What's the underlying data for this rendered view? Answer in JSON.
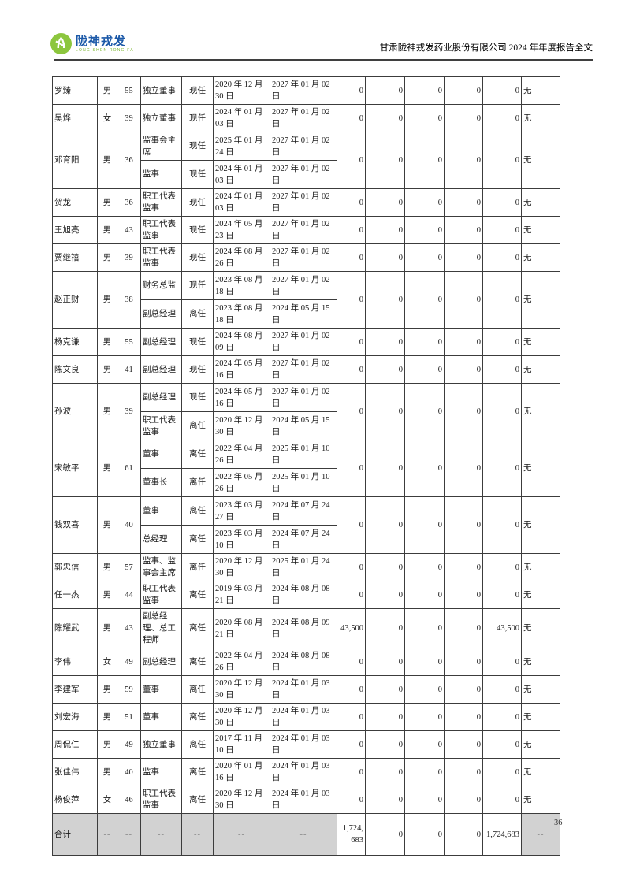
{
  "header": {
    "logo": {
      "brand_cn": "陇神戎发",
      "brand_en": "LONG SHEN RONG FA",
      "brand_blue": "#1c59a8",
      "brand_green": "#8cc63e"
    },
    "doc_title": "甘肃陇神戎发药业股份有限公司 2024 年年度报告全文"
  },
  "table": {
    "rows": [
      {
        "name": "罗臻",
        "gender": "男",
        "age": "55",
        "stints": [
          {
            "position": "独立董事",
            "status": "现任",
            "start": "2020 年 12 月 30 日",
            "end": "2027 年 01 月 02 日"
          }
        ],
        "values": [
          "0",
          "0",
          "0",
          "0",
          "0"
        ],
        "remark": "无"
      },
      {
        "name": "吴烨",
        "gender": "女",
        "age": "39",
        "stints": [
          {
            "position": "独立董事",
            "status": "现任",
            "start": "2024 年 01 月 03 日",
            "end": "2027 年 01 月 02 日"
          }
        ],
        "values": [
          "0",
          "0",
          "0",
          "0",
          "0"
        ],
        "remark": "无"
      },
      {
        "name": "邓育阳",
        "gender": "男",
        "age": "36",
        "stints": [
          {
            "position": "监事会主席",
            "status": "现任",
            "start": "2025 年 01 月 24 日",
            "end": "2027 年 01 月 02 日"
          },
          {
            "position": "监事",
            "status": "现任",
            "start": "2024 年 01 月 03 日",
            "end": "2027 年 01 月 02 日"
          }
        ],
        "values": [
          "0",
          "0",
          "0",
          "0",
          "0"
        ],
        "remark": "无"
      },
      {
        "name": "贺龙",
        "gender": "男",
        "age": "36",
        "stints": [
          {
            "position": "职工代表监事",
            "status": "现任",
            "start": "2024 年 01 月 03 日",
            "end": "2027 年 01 月 02 日"
          }
        ],
        "values": [
          "0",
          "0",
          "0",
          "0",
          "0"
        ],
        "remark": "无"
      },
      {
        "name": "王旭亮",
        "gender": "男",
        "age": "43",
        "stints": [
          {
            "position": "职工代表监事",
            "status": "现任",
            "start": "2024 年 05 月 23 日",
            "end": "2027 年 01 月 02 日"
          }
        ],
        "values": [
          "0",
          "0",
          "0",
          "0",
          "0"
        ],
        "remark": "无"
      },
      {
        "name": "贾继禧",
        "gender": "男",
        "age": "39",
        "stints": [
          {
            "position": "职工代表监事",
            "status": "现任",
            "start": "2024 年 08 月 26 日",
            "end": "2027 年 01 月 02 日"
          }
        ],
        "values": [
          "0",
          "0",
          "0",
          "0",
          "0"
        ],
        "remark": "无"
      },
      {
        "name": "赵正财",
        "gender": "男",
        "age": "38",
        "stints": [
          {
            "position": "财务总监",
            "status": "现任",
            "start": "2023 年 08 月 18 日",
            "end": "2027 年 01 月 02 日"
          },
          {
            "position": "副总经理",
            "status": "离任",
            "start": "2023 年 08 月 18 日",
            "end": "2024 年 05 月 15 日"
          }
        ],
        "values": [
          "0",
          "0",
          "0",
          "0",
          "0"
        ],
        "remark": "无"
      },
      {
        "name": "杨克谦",
        "gender": "男",
        "age": "55",
        "stints": [
          {
            "position": "副总经理",
            "status": "现任",
            "start": "2024 年 08 月 09 日",
            "end": "2027 年 01 月 02 日"
          }
        ],
        "values": [
          "0",
          "0",
          "0",
          "0",
          "0"
        ],
        "remark": "无"
      },
      {
        "name": "陈文良",
        "gender": "男",
        "age": "41",
        "stints": [
          {
            "position": "副总经理",
            "status": "现任",
            "start": "2024 年 05 月 16 日",
            "end": "2027 年 01 月 02 日"
          }
        ],
        "values": [
          "0",
          "0",
          "0",
          "0",
          "0"
        ],
        "remark": "无"
      },
      {
        "name": "孙波",
        "gender": "男",
        "age": "39",
        "stints": [
          {
            "position": "副总经理",
            "status": "现任",
            "start": "2024 年 05 月 16 日",
            "end": "2027 年 01 月 02 日"
          },
          {
            "position": "职工代表监事",
            "status": "离任",
            "start": "2020 年 12 月 30 日",
            "end": "2024 年 05 月 15 日"
          }
        ],
        "values": [
          "0",
          "0",
          "0",
          "0",
          "0"
        ],
        "remark": "无"
      },
      {
        "name": "宋敏平",
        "gender": "男",
        "age": "61",
        "stints": [
          {
            "position": "董事",
            "status": "离任",
            "start": "2022 年 04 月 26 日",
            "end": "2025 年 01 月 10 日"
          },
          {
            "position": "董事长",
            "status": "离任",
            "start": "2022 年 05 月 26 日",
            "end": "2025 年 01 月 10 日"
          }
        ],
        "values": [
          "0",
          "0",
          "0",
          "0",
          "0"
        ],
        "remark": "无"
      },
      {
        "name": "钱双喜",
        "gender": "男",
        "age": "40",
        "stints": [
          {
            "position": "董事",
            "status": "离任",
            "start": "2023 年 03 月 27 日",
            "end": "2024 年 07 月 24 日"
          },
          {
            "position": "总经理",
            "status": "离任",
            "start": "2023 年 03 月 10 日",
            "end": "2024 年 07 月 24 日"
          }
        ],
        "values": [
          "0",
          "0",
          "0",
          "0",
          "0"
        ],
        "remark": "无"
      },
      {
        "name": "郭忠信",
        "gender": "男",
        "age": "57",
        "stints": [
          {
            "position": "监事、监事会主席",
            "status": "离任",
            "start": "2020 年 12 月 30 日",
            "end": "2025 年 01 月 24 日"
          }
        ],
        "values": [
          "0",
          "0",
          "0",
          "0",
          "0"
        ],
        "remark": "无"
      },
      {
        "name": "任一杰",
        "gender": "男",
        "age": "44",
        "stints": [
          {
            "position": "职工代表监事",
            "status": "离任",
            "start": "2019 年 03 月 21 日",
            "end": "2024 年 08 月 08 日"
          }
        ],
        "values": [
          "0",
          "0",
          "0",
          "0",
          "0"
        ],
        "remark": "无"
      },
      {
        "name": "陈耀武",
        "gender": "男",
        "age": "43",
        "stints": [
          {
            "position": "副总经理、总工程师",
            "status": "离任",
            "start": "2020 年 08 月 21 日",
            "end": "2024 年 08 月 09 日"
          }
        ],
        "values": [
          "43,500",
          "0",
          "0",
          "0",
          "43,500"
        ],
        "remark": "无"
      },
      {
        "name": "李伟",
        "gender": "女",
        "age": "49",
        "stints": [
          {
            "position": "副总经理",
            "status": "离任",
            "start": "2022 年 04 月 26 日",
            "end": "2024 年 08 月 08 日"
          }
        ],
        "values": [
          "0",
          "0",
          "0",
          "0",
          "0"
        ],
        "remark": "无"
      },
      {
        "name": "李建军",
        "gender": "男",
        "age": "59",
        "stints": [
          {
            "position": "董事",
            "status": "离任",
            "start": "2020 年 12 月 30 日",
            "end": "2024 年 01 月 03 日"
          }
        ],
        "values": [
          "0",
          "0",
          "0",
          "0",
          "0"
        ],
        "remark": "无"
      },
      {
        "name": "刘宏海",
        "gender": "男",
        "age": "51",
        "stints": [
          {
            "position": "董事",
            "status": "离任",
            "start": "2020 年 12 月 30 日",
            "end": "2024 年 01 月 03 日"
          }
        ],
        "values": [
          "0",
          "0",
          "0",
          "0",
          "0"
        ],
        "remark": "无"
      },
      {
        "name": "周侃仁",
        "gender": "男",
        "age": "49",
        "stints": [
          {
            "position": "独立董事",
            "status": "离任",
            "start": "2017 年 11 月 10 日",
            "end": "2024 年 01 月 03 日"
          }
        ],
        "values": [
          "0",
          "0",
          "0",
          "0",
          "0"
        ],
        "remark": "无"
      },
      {
        "name": "张佳伟",
        "gender": "男",
        "age": "40",
        "stints": [
          {
            "position": "监事",
            "status": "离任",
            "start": "2020 年 01 月 16 日",
            "end": "2024 年 01 月 03 日"
          }
        ],
        "values": [
          "0",
          "0",
          "0",
          "0",
          "0"
        ],
        "remark": "无"
      },
      {
        "name": "杨俊萍",
        "gender": "女",
        "age": "46",
        "stints": [
          {
            "position": "职工代表监事",
            "status": "离任",
            "start": "2020 年 12 月 30 日",
            "end": "2024 年 01 月 03 日"
          }
        ],
        "values": [
          "0",
          "0",
          "0",
          "0",
          "0"
        ],
        "remark": "无"
      }
    ],
    "total_row": {
      "label": "合计",
      "dash": "--",
      "values": [
        "1,724,683",
        "0",
        "0",
        "0",
        "1,724,683"
      ],
      "remark": "--",
      "row_gray": "#d2d2d2"
    }
  },
  "page": {
    "number": "36"
  }
}
